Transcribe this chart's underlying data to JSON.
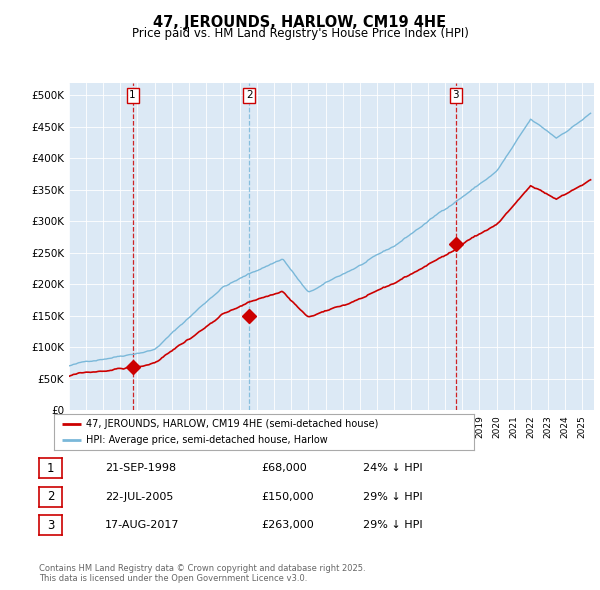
{
  "title": "47, JEROUNDS, HARLOW, CM19 4HE",
  "subtitle": "Price paid vs. HM Land Registry's House Price Index (HPI)",
  "bg_color": "#dce9f5",
  "hpi_color": "#7ab8d9",
  "price_color": "#cc0000",
  "sale_dates": [
    1998.72,
    2005.55,
    2017.62
  ],
  "sale_prices": [
    68000,
    150000,
    263000
  ],
  "sale_labels": [
    "1",
    "2",
    "3"
  ],
  "vline_colors": [
    "#cc0000",
    "#7ab8d9",
    "#cc0000"
  ],
  "legend_entries": [
    "47, JEROUNDS, HARLOW, CM19 4HE (semi-detached house)",
    "HPI: Average price, semi-detached house, Harlow"
  ],
  "table_rows": [
    [
      "1",
      "21-SEP-1998",
      "£68,000",
      "24% ↓ HPI"
    ],
    [
      "2",
      "22-JUL-2005",
      "£150,000",
      "29% ↓ HPI"
    ],
    [
      "3",
      "17-AUG-2017",
      "£263,000",
      "29% ↓ HPI"
    ]
  ],
  "footer": "Contains HM Land Registry data © Crown copyright and database right 2025.\nThis data is licensed under the Open Government Licence v3.0.",
  "ylim": [
    0,
    520000
  ],
  "yticks": [
    0,
    50000,
    100000,
    150000,
    200000,
    250000,
    300000,
    350000,
    400000,
    450000,
    500000
  ],
  "ytick_labels": [
    "£0",
    "£50K",
    "£100K",
    "£150K",
    "£200K",
    "£250K",
    "£300K",
    "£350K",
    "£400K",
    "£450K",
    "£500K"
  ],
  "xstart": 1995.3,
  "xend": 2025.7
}
